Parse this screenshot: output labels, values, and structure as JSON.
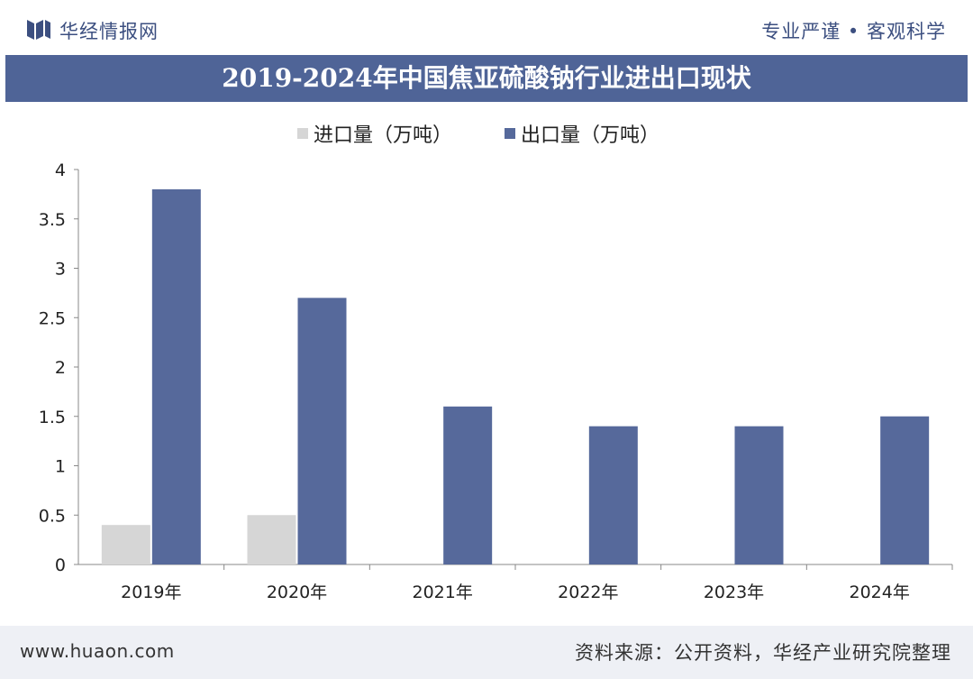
{
  "header": {
    "brand": "华经情报网",
    "tagline": "专业严谨 • 客观科学"
  },
  "title": "2019-2024年中国焦亚硫酸钠行业进出口现状",
  "footer": {
    "url": "www.huaon.com",
    "source": "资料来源：公开资料，华经产业研究院整理"
  },
  "colors": {
    "import": "#d6d6d6",
    "export": "#56699b",
    "title_bg": "#4f6497"
  },
  "chart_data": {
    "type": "bar",
    "categories": [
      "2019年",
      "2020年",
      "2021年",
      "2022年",
      "2023年",
      "2024年"
    ],
    "series": [
      {
        "name": "进口量（万吨）",
        "values": [
          0.4,
          0.5,
          0,
          0,
          0,
          0
        ]
      },
      {
        "name": "出口量（万吨）",
        "values": [
          3.8,
          2.7,
          1.6,
          1.4,
          1.4,
          1.5
        ]
      }
    ],
    "ylim": [
      0,
      4
    ],
    "yticks": [
      0,
      0.5,
      1,
      1.5,
      2,
      2.5,
      3,
      3.5,
      4
    ],
    "ytick_labels": [
      "0",
      "0.5",
      "1",
      "1.5",
      "2",
      "2.5",
      "3",
      "3.5",
      "4"
    ],
    "legend": "top-left",
    "grid": false
  }
}
